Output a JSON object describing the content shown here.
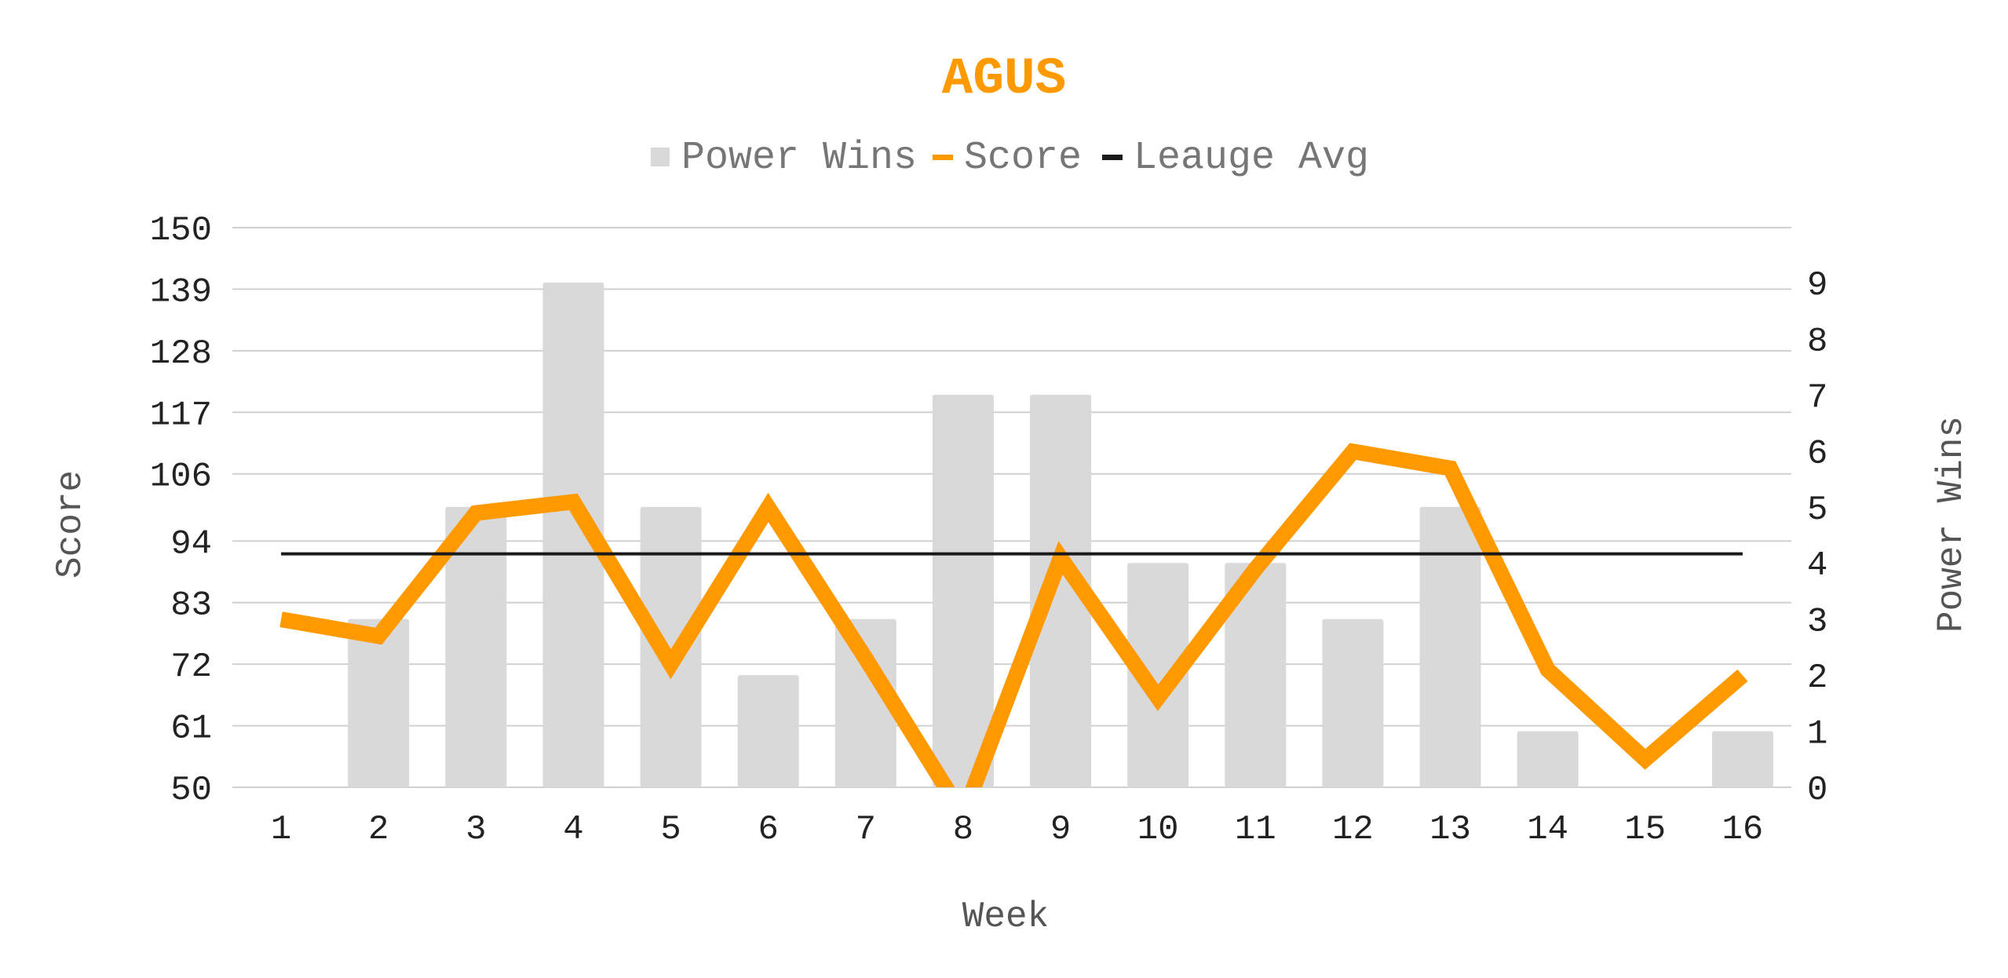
{
  "chart_data": {
    "type": "bar+line",
    "title": "AGUS",
    "title_color": "#FF9900",
    "xlabel": "Week",
    "ylabel_left": "Score",
    "ylabel_right": "Power Wins",
    "categories": [
      "1",
      "2",
      "3",
      "4",
      "5",
      "6",
      "7",
      "8",
      "9",
      "10",
      "11",
      "12",
      "13",
      "14",
      "15",
      "16"
    ],
    "left_axis": {
      "min": 50,
      "max": 150,
      "ticks": [
        "50",
        "61",
        "72",
        "83",
        "94",
        "106",
        "117",
        "128",
        "139",
        "150"
      ]
    },
    "right_axis": {
      "min": 0,
      "max": 9,
      "ticks": [
        "0",
        "1",
        "2",
        "3",
        "4",
        "5",
        "6",
        "7",
        "8",
        "9"
      ]
    },
    "grid": true,
    "legend_position": "top",
    "legend": [
      {
        "label": "Power Wins",
        "color": "#D9D9D9",
        "shape": "square"
      },
      {
        "label": "Score",
        "color": "#FF9900",
        "shape": "line"
      },
      {
        "label": "Leauge Avg",
        "color": "#1A1A1A",
        "shape": "line"
      }
    ],
    "series": [
      {
        "name": "Power Wins",
        "type": "bar",
        "axis": "right",
        "color": "#D9D9D9",
        "values": [
          0,
          3,
          5,
          9,
          5,
          2,
          3,
          7,
          7,
          4,
          4,
          3,
          5,
          1,
          0,
          1
        ]
      },
      {
        "name": "Score",
        "type": "line",
        "axis": "left",
        "color": "#FF9900",
        "values": [
          80,
          77,
          99,
          101,
          72,
          100,
          73,
          45,
          91,
          66,
          89,
          110,
          107,
          71,
          55,
          70
        ]
      },
      {
        "name": "Leauge Avg",
        "type": "line",
        "axis": "left",
        "color": "#1A1A1A",
        "values": [
          91.7,
          91.7,
          91.7,
          91.7,
          91.7,
          91.7,
          91.7,
          91.7,
          91.7,
          91.7,
          91.7,
          91.7,
          91.7,
          91.7,
          91.7,
          91.7
        ]
      }
    ]
  }
}
